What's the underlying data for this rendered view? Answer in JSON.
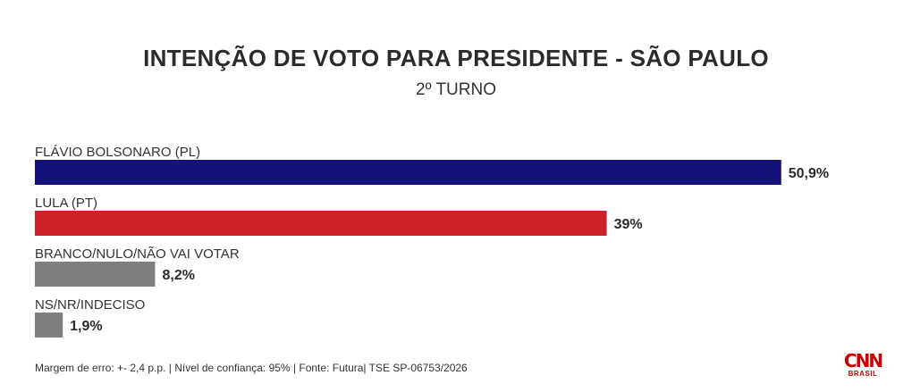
{
  "chart_data": {
    "type": "bar",
    "orientation": "horizontal",
    "title": "INTENÇÃO DE VOTO PARA PRESIDENTE - SÃO PAULO",
    "subtitle": "2º TURNO",
    "categories": [
      "FLÁVIO BOLSONARO (PL)",
      "LULA (PT)",
      "BRANCO/NULO/NÃO VAI VOTAR",
      "NS/NR/INDECISO"
    ],
    "values": [
      50.9,
      39,
      8.2,
      1.9
    ],
    "value_labels": [
      "50,9%",
      "39%",
      "8,2%",
      "1,9%"
    ],
    "colors": [
      "#14137a",
      "#cc2229",
      "#7f7f7f",
      "#7f7f7f"
    ],
    "xlim": [
      0,
      100
    ],
    "grid": false,
    "legend": "none"
  },
  "footer": {
    "note": "Margem de erro: +- 2,4 p.p. | Nível de confiança: 95% | Fonte: Futura| TSE SP-06753/2026"
  },
  "logo": {
    "mark": "CNN",
    "sub": "BRASIL"
  }
}
